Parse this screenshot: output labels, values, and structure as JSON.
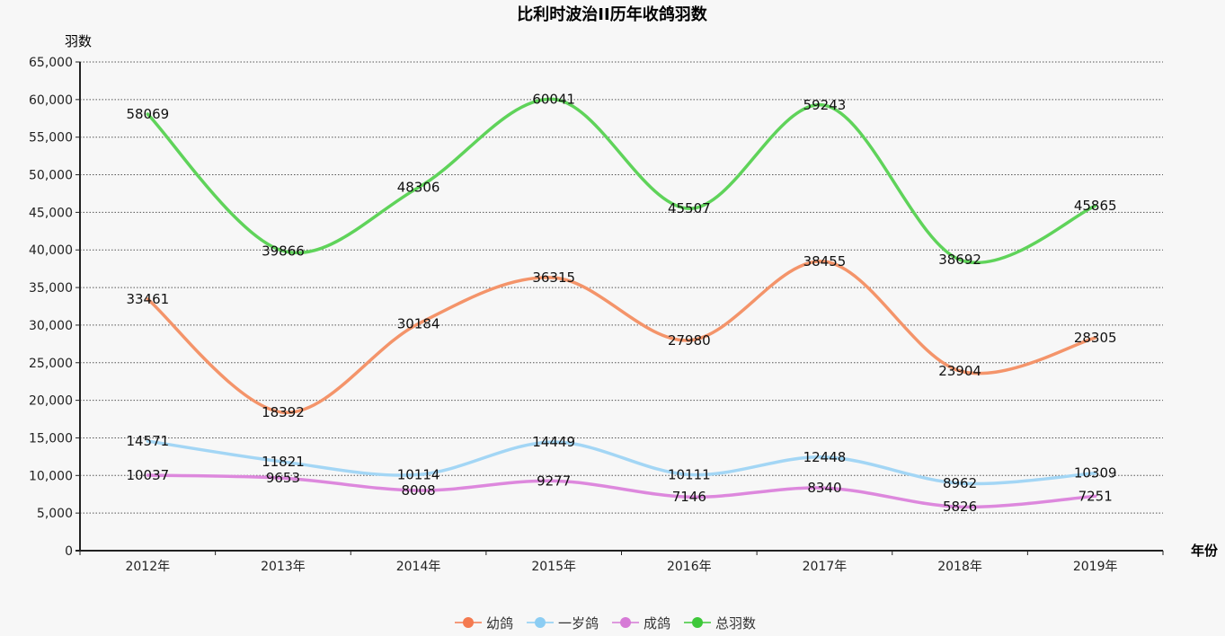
{
  "chart_data": {
    "type": "line",
    "title": "比利时波治II历年收鸽羽数",
    "xlabel": "年份",
    "ylabel": "羽数",
    "categories": [
      "2012年",
      "2013年",
      "2014年",
      "2015年",
      "2016年",
      "2017年",
      "2018年",
      "2019年"
    ],
    "ylim": [
      0,
      65000
    ],
    "y_ticks": [
      0,
      5000,
      10000,
      15000,
      20000,
      25000,
      30000,
      35000,
      40000,
      45000,
      50000,
      55000,
      60000,
      65000
    ],
    "y_tick_labels": [
      "0",
      "5,000",
      "10,000",
      "15,000",
      "20,000",
      "25,000",
      "30,000",
      "35,000",
      "40,000",
      "45,000",
      "50,000",
      "55,000",
      "60,000",
      "65,000"
    ],
    "grid": "horizontal dotted",
    "legend_position": "bottom-center",
    "smooth": true,
    "series": [
      {
        "name": "幼鸽",
        "color": "#f4946a",
        "legend_color": "#f47a50",
        "values": [
          33461,
          18392,
          30184,
          36315,
          27980,
          38455,
          23904,
          28305
        ]
      },
      {
        "name": "一岁鸽",
        "color": "#a3d6f5",
        "legend_color": "#8ccdf3",
        "values": [
          14571,
          11821,
          10114,
          14449,
          10111,
          12448,
          8962,
          10309
        ]
      },
      {
        "name": "成鸽",
        "color": "#dd88dd",
        "legend_color": "#d67ad6",
        "values": [
          10037,
          9653,
          8008,
          9277,
          7146,
          8340,
          5826,
          7251
        ]
      },
      {
        "name": "总羽数",
        "color": "#5fd35a",
        "legend_color": "#3ec83a",
        "values": [
          58069,
          39866,
          48306,
          60041,
          45507,
          59243,
          38692,
          45865
        ]
      }
    ]
  }
}
